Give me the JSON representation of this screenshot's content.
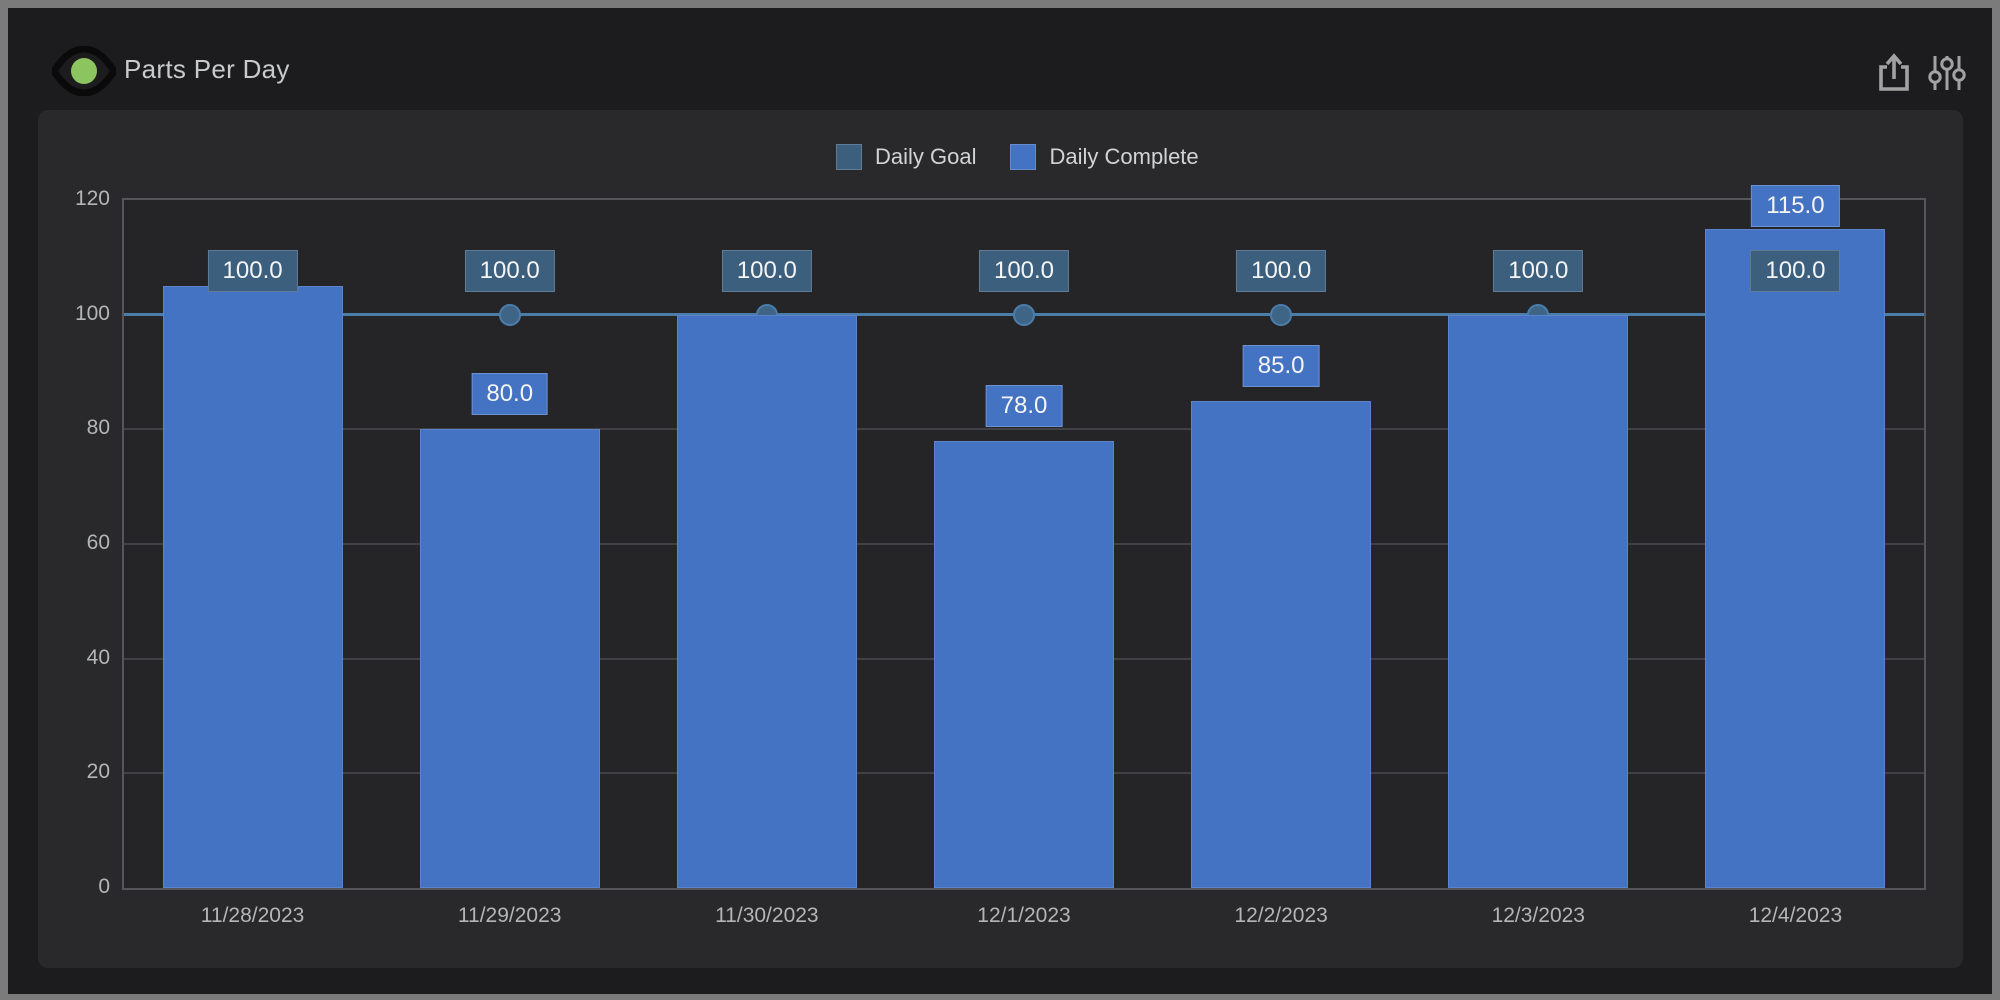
{
  "header": {
    "title": "Parts Per Day",
    "icons": {
      "visibility": "eye-icon",
      "export": "export-icon",
      "settings": "sliders-icon"
    }
  },
  "colors": {
    "frame": "#7b7b7b",
    "app_background": "#1c1c1e",
    "panel_background": "#29292b",
    "plot_background": "#252528",
    "grid": "#414145",
    "plot_border": "#55555a",
    "goal_fill": "#3d5f7e",
    "goal_line": "#4b7dab",
    "goal_marker": "#3e6486",
    "complete_fill": "#4573c4",
    "label_text": "#f4f5f6",
    "axis_text": "#b4b5b7",
    "eye_pupil": "#8cc45f",
    "icon_gray": "#a2a2a2"
  },
  "chart_data": {
    "type": "bar",
    "title": "Parts Per Day",
    "categories": [
      "11/28/2023",
      "11/29/2023",
      "11/30/2023",
      "12/1/2023",
      "12/2/2023",
      "12/3/2023",
      "12/4/2023"
    ],
    "series": [
      {
        "name": "Daily Goal",
        "render_as": "line-with-markers",
        "color": "#3d5f7e",
        "line_color": "#4b7dab",
        "values": [
          100,
          100,
          100,
          100,
          100,
          100,
          100
        ],
        "data_labels": [
          "100.0",
          "100.0",
          "100.0",
          "100.0",
          "100.0",
          "100.0",
          "100.0"
        ]
      },
      {
        "name": "Daily Complete",
        "render_as": "bar",
        "color": "#4573c4",
        "values": [
          105,
          80,
          100,
          78,
          85,
          100,
          115
        ],
        "data_labels": [
          "105.0",
          "80.0",
          "100.0",
          "78.0",
          "85.0",
          "100.0",
          "115.0"
        ],
        "labels_visible": [
          false,
          true,
          false,
          true,
          true,
          false,
          true
        ]
      }
    ],
    "xlabel": "",
    "ylabel": "",
    "ylim": [
      0,
      120
    ],
    "y_ticks": [
      0,
      20,
      40,
      60,
      80,
      100,
      120
    ],
    "grid": true,
    "legend_position": "top-center"
  }
}
